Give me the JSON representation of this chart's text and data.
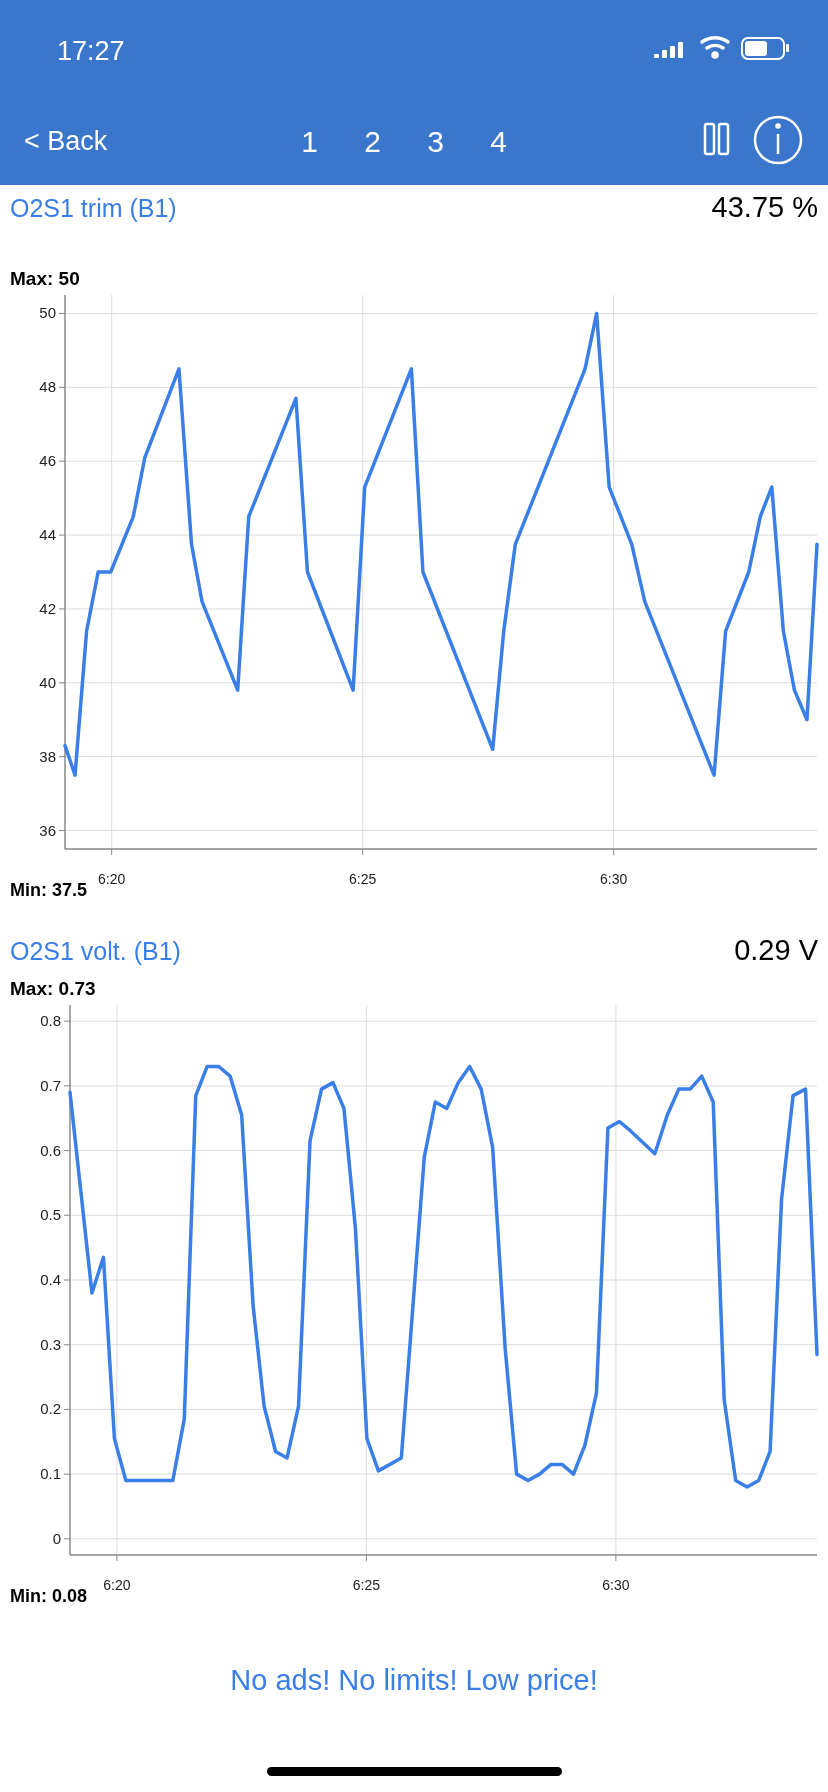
{
  "chart_data": [
    {
      "type": "other",
      "annotations": [
        "17:27",
        "< Back",
        "1 2 3 4"
      ]
    },
    {
      "type": "line",
      "title": "O2S1 trim (B1)",
      "annotations": [
        "43.75 %",
        "Max: 50",
        "Min: 37.5"
      ],
      "color": "#3a7ee8",
      "grid": true,
      "marker": "none",
      "line_style": "solid",
      "xlim": [
        379.07,
        394.05
      ],
      "xticks": [
        {
          "value": 380,
          "label": "6:20"
        },
        {
          "value": 385,
          "label": "6:25"
        },
        {
          "value": 390,
          "label": "6:30"
        }
      ],
      "ylim": [
        35.5,
        50.5
      ],
      "yticks": [
        36,
        38,
        40,
        42,
        44,
        46,
        48,
        50
      ],
      "x": [
        379.07,
        379.27,
        379.5,
        379.73,
        379.98,
        380.43,
        380.66,
        381.34,
        381.59,
        381.8,
        382.51,
        382.73,
        383.67,
        383.9,
        384.81,
        385.04,
        385.97,
        386.2,
        387.59,
        387.81,
        388.04,
        389.43,
        389.66,
        389.91,
        390.36,
        390.62,
        392.0,
        392.23,
        392.69,
        392.92,
        393.15,
        393.38,
        393.6,
        393.85,
        394.05
      ],
      "values": [
        38.3,
        37.5,
        41.4,
        43,
        43,
        44.5,
        46.1,
        48.5,
        43.75,
        42.2,
        39.8,
        44.5,
        47.7,
        43,
        39.8,
        45.3,
        48.5,
        43,
        38.2,
        41.4,
        43.75,
        48.5,
        50,
        45.3,
        43.75,
        42.2,
        37.5,
        41.4,
        43,
        44.5,
        45.3,
        41.4,
        39.8,
        39,
        43.75
      ]
    },
    {
      "type": "line",
      "title": "O2S1 volt. (B1)",
      "annotations": [
        "0.29 V",
        "Max: 0.73",
        "Min: 0.08"
      ],
      "color": "#3a7ee8",
      "grid": true,
      "marker": "none",
      "line_style": "solid",
      "xlim": [
        379.06,
        394.03
      ],
      "xticks": [
        {
          "value": 380,
          "label": "6:20"
        },
        {
          "value": 385,
          "label": "6:25"
        },
        {
          "value": 390,
          "label": "6:30"
        }
      ],
      "ylim": [
        -0.025,
        0.825
      ],
      "yticks": [
        0,
        0.1,
        0.2,
        0.3,
        0.4,
        0.5,
        0.6,
        0.7,
        0.8
      ],
      "x": [
        379.06,
        379.5,
        379.73,
        379.95,
        380.18,
        381.12,
        381.35,
        381.58,
        381.81,
        382.04,
        382.27,
        382.5,
        382.73,
        382.95,
        383.18,
        383.41,
        383.64,
        383.87,
        384.1,
        384.33,
        384.55,
        384.78,
        385.01,
        385.24,
        385.7,
        386.16,
        386.38,
        386.61,
        386.84,
        387.07,
        387.3,
        387.53,
        387.78,
        388.01,
        388.24,
        388.47,
        388.7,
        388.92,
        389.15,
        389.38,
        389.61,
        389.84,
        390.07,
        390.3,
        390.78,
        391.03,
        391.26,
        391.49,
        391.72,
        391.95,
        392.17,
        392.4,
        392.63,
        392.86,
        393.09,
        393.32,
        393.55,
        393.8,
        394.03
      ],
      "values": [
        0.69,
        0.38,
        0.435,
        0.155,
        0.09,
        0.09,
        0.185,
        0.685,
        0.73,
        0.73,
        0.715,
        0.655,
        0.36,
        0.205,
        0.135,
        0.125,
        0.205,
        0.615,
        0.695,
        0.705,
        0.665,
        0.48,
        0.155,
        0.105,
        0.125,
        0.59,
        0.675,
        0.665,
        0.705,
        0.73,
        0.695,
        0.605,
        0.295,
        0.1,
        0.09,
        0.1,
        0.115,
        0.115,
        0.1,
        0.145,
        0.225,
        0.635,
        0.645,
        0.63,
        0.595,
        0.655,
        0.695,
        0.695,
        0.715,
        0.675,
        0.215,
        0.09,
        0.08,
        0.09,
        0.135,
        0.525,
        0.685,
        0.695,
        0.285
      ]
    },
    {
      "type": "other",
      "annotations": [
        "No ads! No limits! Low price!"
      ]
    }
  ]
}
